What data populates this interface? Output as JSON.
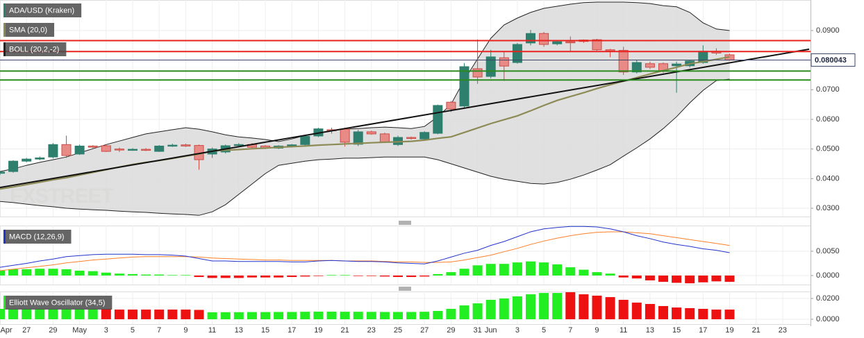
{
  "chart_data": [
    {
      "type": "candlestick",
      "watermark": "FXSTREET",
      "xlim": [
        0,
        61.1
      ],
      "xticks": [
        {
          "value": 0,
          "label": "Apr"
        },
        {
          "value": 2,
          "label": "27"
        },
        {
          "value": 4,
          "label": "29"
        },
        {
          "value": 6,
          "label": "May"
        },
        {
          "value": 8,
          "label": "3"
        },
        {
          "value": 10,
          "label": "5"
        },
        {
          "value": 12,
          "label": "7"
        },
        {
          "value": 14,
          "label": "9"
        },
        {
          "value": 16,
          "label": "11"
        },
        {
          "value": 18,
          "label": "13"
        },
        {
          "value": 20,
          "label": "15"
        },
        {
          "value": 22,
          "label": "17"
        },
        {
          "value": 24,
          "label": "19"
        },
        {
          "value": 26,
          "label": "21"
        },
        {
          "value": 28,
          "label": "23"
        },
        {
          "value": 30,
          "label": "25"
        },
        {
          "value": 32,
          "label": "27"
        },
        {
          "value": 34,
          "label": "29"
        },
        {
          "value": 36,
          "label": "31"
        },
        {
          "value": 37,
          "label": "Jun"
        },
        {
          "value": 39,
          "label": "3"
        },
        {
          "value": 41,
          "label": "5"
        },
        {
          "value": 43,
          "label": "7"
        },
        {
          "value": 45,
          "label": "9"
        },
        {
          "value": 47,
          "label": "11"
        },
        {
          "value": 49,
          "label": "13"
        },
        {
          "value": 51,
          "label": "15"
        },
        {
          "value": 53,
          "label": "17"
        },
        {
          "value": 55,
          "label": "19"
        },
        {
          "value": 57,
          "label": "21"
        },
        {
          "value": 59,
          "label": "23"
        }
      ],
      "ylim": [
        0.0272,
        0.1003
      ],
      "yticks": [
        {
          "value": 0.03,
          "label": "0.0300"
        },
        {
          "value": 0.04,
          "label": "0.0400"
        },
        {
          "value": 0.05,
          "label": "0.0500"
        },
        {
          "value": 0.06,
          "label": "0.0600"
        },
        {
          "value": 0.07,
          "label": "0.0700"
        },
        {
          "value": 0.08,
          "label": "0.0800"
        },
        {
          "value": 0.09,
          "label": "0.0900"
        }
      ],
      "grid": true,
      "last_price": 0.080043,
      "ohlc": {
        "name": "ADA/USD (Kraken)",
        "up_color": "#2e7f6e",
        "down_color": "#e88b86",
        "down_edge": "#cc4b45",
        "open": [
          0.0418,
          0.0424,
          0.0459,
          0.0466,
          0.0473,
          0.0515,
          0.0483,
          0.051,
          0.0511,
          0.05,
          0.0497,
          0.0499,
          0.0492,
          0.051,
          0.0514,
          0.0512,
          0.0483,
          0.049,
          0.0512,
          0.0515,
          0.051,
          0.0503,
          0.0508,
          0.0515,
          0.0544,
          0.0565,
          0.0567,
          0.0516,
          0.0558,
          0.0551,
          0.0515,
          0.0539,
          0.0534,
          0.0553,
          0.0658,
          0.0645,
          0.0771,
          0.0745,
          0.0808,
          0.0792,
          0.0858,
          0.089,
          0.0855,
          0.0862,
          0.0868,
          0.0869,
          0.0835,
          0.0833,
          0.076,
          0.0788,
          0.0788,
          0.0781,
          0.0781,
          0.0792,
          0.083,
          0.0818
        ],
        "high": [
          0.0425,
          0.0462,
          0.047,
          0.0475,
          0.052,
          0.0545,
          0.0515,
          0.0513,
          0.0515,
          0.0505,
          0.0503,
          0.0503,
          0.0513,
          0.0518,
          0.0518,
          0.0515,
          0.0505,
          0.0515,
          0.052,
          0.052,
          0.0513,
          0.0513,
          0.0517,
          0.0548,
          0.0572,
          0.0572,
          0.0572,
          0.0565,
          0.0562,
          0.0555,
          0.0545,
          0.0542,
          0.056,
          0.065,
          0.0662,
          0.079,
          0.087,
          0.0835,
          0.083,
          0.0858,
          0.0902,
          0.0895,
          0.0868,
          0.088,
          0.087,
          0.0872,
          0.0838,
          0.0845,
          0.08,
          0.0795,
          0.0792,
          0.0795,
          0.08,
          0.085,
          0.084,
          0.0822
        ],
        "low": [
          0.0412,
          0.042,
          0.0455,
          0.0462,
          0.0468,
          0.047,
          0.048,
          0.0503,
          0.049,
          0.049,
          0.0494,
          0.0493,
          0.049,
          0.0507,
          0.0507,
          0.043,
          0.047,
          0.0485,
          0.0508,
          0.0503,
          0.05,
          0.05,
          0.0505,
          0.0512,
          0.054,
          0.0552,
          0.0508,
          0.051,
          0.0548,
          0.052,
          0.051,
          0.0532,
          0.053,
          0.055,
          0.0625,
          0.064,
          0.072,
          0.0738,
          0.073,
          0.0788,
          0.085,
          0.0845,
          0.085,
          0.0828,
          0.0858,
          0.0832,
          0.081,
          0.075,
          0.0755,
          0.077,
          0.0757,
          0.069,
          0.0775,
          0.0788,
          0.0818,
          0.0798
        ],
        "close": [
          0.0422,
          0.0459,
          0.0466,
          0.047,
          0.0515,
          0.0478,
          0.051,
          0.0506,
          0.0492,
          0.0497,
          0.0499,
          0.0497,
          0.051,
          0.0513,
          0.051,
          0.0464,
          0.05,
          0.0511,
          0.0515,
          0.0506,
          0.0503,
          0.051,
          0.0514,
          0.0543,
          0.0568,
          0.0563,
          0.0523,
          0.0558,
          0.0551,
          0.0523,
          0.0539,
          0.0536,
          0.0556,
          0.0647,
          0.0635,
          0.0778,
          0.0743,
          0.0811,
          0.078,
          0.0853,
          0.089,
          0.0853,
          0.0862,
          0.086,
          0.0863,
          0.0835,
          0.0831,
          0.076,
          0.0792,
          0.0776,
          0.0764,
          0.0787,
          0.0797,
          0.083,
          0.0824,
          0.08
        ]
      },
      "sma": {
        "name": "SMA (20,0)",
        "color": "#8c8a55",
        "values": [
          0.0365,
          0.0372,
          0.038,
          0.0388,
          0.0396,
          0.0403,
          0.0412,
          0.0421,
          0.043,
          0.0439,
          0.0448,
          0.0455,
          0.0461,
          0.0468,
          0.0476,
          0.0483,
          0.0493,
          0.0496,
          0.0498,
          0.0501,
          0.0503,
          0.0506,
          0.0508,
          0.051,
          0.0513,
          0.0515,
          0.0517,
          0.0519,
          0.0521,
          0.0523,
          0.0524,
          0.0526,
          0.053,
          0.0536,
          0.0541,
          0.0556,
          0.0571,
          0.0586,
          0.0599,
          0.0612,
          0.0629,
          0.0647,
          0.0664,
          0.0677,
          0.069,
          0.0704,
          0.0717,
          0.0729,
          0.0741,
          0.0753,
          0.0765,
          0.0776,
          0.0788,
          0.0795,
          0.0803,
          0.0811
        ]
      },
      "boll": {
        "name": "BOLL (20,2,-2)",
        "color": "#222222",
        "fill": "#dadada",
        "upper": [
          0.0424,
          0.0433,
          0.0445,
          0.0455,
          0.0464,
          0.0473,
          0.0487,
          0.0501,
          0.0515,
          0.0527,
          0.0539,
          0.0551,
          0.0558,
          0.0565,
          0.0572,
          0.0567,
          0.0558,
          0.0548,
          0.0541,
          0.0537,
          0.0532,
          0.0525,
          0.0534,
          0.0546,
          0.0555,
          0.0562,
          0.0567,
          0.0569,
          0.0572,
          0.0574,
          0.0572,
          0.0569,
          0.0576,
          0.0609,
          0.0651,
          0.0733,
          0.0804,
          0.0874,
          0.0919,
          0.0942,
          0.0961,
          0.0975,
          0.0982,
          0.0989,
          0.0994,
          0.0996,
          0.0996,
          0.0996,
          0.0994,
          0.0991,
          0.0984,
          0.098,
          0.0961,
          0.0926,
          0.0905,
          0.09
        ],
        "lower": [
          0.0323,
          0.0319,
          0.0314,
          0.0309,
          0.0305,
          0.03,
          0.0297,
          0.0295,
          0.0293,
          0.029,
          0.0288,
          0.0286,
          0.0283,
          0.0281,
          0.0279,
          0.0276,
          0.0288,
          0.0312,
          0.0347,
          0.0382,
          0.0417,
          0.0445,
          0.0452,
          0.0459,
          0.0464,
          0.0466,
          0.0469,
          0.0469,
          0.0471,
          0.0473,
          0.0473,
          0.0473,
          0.0473,
          0.0464,
          0.045,
          0.0436,
          0.0422,
          0.0408,
          0.0398,
          0.0391,
          0.0384,
          0.0382,
          0.0387,
          0.0398,
          0.0412,
          0.0429,
          0.0447,
          0.0476,
          0.0504,
          0.0534,
          0.0569,
          0.0609,
          0.0656,
          0.0698,
          0.0731,
          0.0736
        ]
      },
      "trendline": {
        "color": "#111111",
        "x": [
          0,
          61
        ],
        "values": [
          0.037,
          0.0837
        ]
      },
      "levels": [
        {
          "value": 0.0866,
          "color": "#e8231f"
        },
        {
          "value": 0.0829,
          "color": "#e8231f"
        },
        {
          "value": 0.0763,
          "color": "#2b8a1e"
        },
        {
          "value": 0.0733,
          "color": "#2b8a1e"
        }
      ]
    },
    {
      "type": "macd",
      "name": "MACD (12,26,9)",
      "ylim": [
        -0.00186,
        0.01029
      ],
      "yticks": [
        {
          "value": 0,
          "label": "0.0000"
        },
        {
          "value": 0.005,
          "label": "0.0050"
        }
      ],
      "macd": {
        "color": "#2233cc",
        "values": [
          0.0017,
          0.0021,
          0.0025,
          0.003,
          0.0034,
          0.0039,
          0.0041,
          0.0043,
          0.0044,
          0.0044,
          0.0044,
          0.0043,
          0.0043,
          0.0042,
          0.004,
          0.0035,
          0.003,
          0.003,
          0.0029,
          0.0029,
          0.0029,
          0.0029,
          0.0028,
          0.0028,
          0.003,
          0.0031,
          0.003,
          0.0029,
          0.0029,
          0.0028,
          0.0026,
          0.0025,
          0.0024,
          0.003,
          0.0038,
          0.0046,
          0.0052,
          0.0062,
          0.007,
          0.008,
          0.009,
          0.0096,
          0.0099,
          0.0101,
          0.0101,
          0.01,
          0.0096,
          0.009,
          0.0082,
          0.0076,
          0.0069,
          0.0064,
          0.006,
          0.0055,
          0.0052,
          0.0047
        ]
      },
      "signal": {
        "color": "#ff7f27",
        "values": [
          0.001,
          0.0013,
          0.0016,
          0.0019,
          0.0022,
          0.0026,
          0.0029,
          0.0032,
          0.0034,
          0.0036,
          0.0038,
          0.0039,
          0.0039,
          0.0039,
          0.0039,
          0.0038,
          0.0036,
          0.0035,
          0.0034,
          0.0033,
          0.0032,
          0.0032,
          0.0031,
          0.0031,
          0.0031,
          0.0031,
          0.003,
          0.003,
          0.003,
          0.0029,
          0.0028,
          0.0028,
          0.0027,
          0.0027,
          0.0028,
          0.0032,
          0.0037,
          0.0042,
          0.0049,
          0.0056,
          0.0064,
          0.0071,
          0.0077,
          0.0082,
          0.0086,
          0.0089,
          0.009,
          0.009,
          0.0088,
          0.0086,
          0.0082,
          0.0078,
          0.0074,
          0.007,
          0.0066,
          0.0062
        ]
      },
      "histogram": {
        "positive_color": "#22ee22",
        "negative_color": "#ee1111",
        "values": [
          0.001,
          0.0013,
          0.0013,
          0.0014,
          0.0014,
          0.0013,
          0.001,
          0.0009,
          0.0006,
          0.0004,
          0.0003,
          0.0002,
          0.0002,
          0.0001,
          0.0001,
          -0.0003,
          -0.0005,
          -0.0005,
          -0.0005,
          -0.0004,
          -0.0004,
          -0.0004,
          -0.0003,
          -0.0002,
          -0.0001,
          0.0001,
          0.0001,
          -0.0001,
          -0.0001,
          -0.0002,
          -0.0003,
          -0.0003,
          -0.0002,
          0.0003,
          0.0007,
          0.0014,
          0.0021,
          0.0024,
          0.0024,
          0.0027,
          0.0029,
          0.0027,
          0.0023,
          0.0017,
          0.0012,
          0.0007,
          0.0004,
          -0.0004,
          -0.0006,
          -0.001,
          -0.0013,
          -0.0015,
          -0.0016,
          -0.0014,
          -0.0012,
          -0.0013
        ]
      }
    },
    {
      "type": "oscillator",
      "name": "Elliott Wave Oscillator (34,5)",
      "ylim": [
        -0.0047,
        0.0267
      ],
      "yticks": [
        {
          "value": 0,
          "label": "0.0000"
        },
        {
          "value": 0.02,
          "label": "0.0200"
        }
      ],
      "values": [
        0.01,
        0.01,
        0.01,
        0.01,
        0.01,
        0.01,
        0.01,
        0.01,
        0.01,
        0.0093,
        0.0093,
        0.0093,
        0.0093,
        0.0093,
        0.0093,
        0.009,
        0.0067,
        0.0068,
        0.0068,
        0.0069,
        0.0069,
        0.007,
        0.007,
        0.0072,
        0.0073,
        0.0073,
        0.0072,
        0.0072,
        0.0071,
        0.007,
        0.007,
        0.007,
        0.0072,
        0.008,
        0.01,
        0.0133,
        0.0153,
        0.0187,
        0.02,
        0.022,
        0.024,
        0.0253,
        0.0253,
        0.026,
        0.024,
        0.0227,
        0.0213,
        0.0187,
        0.016,
        0.0147,
        0.0127,
        0.0113,
        0.0107,
        0.01,
        0.0093,
        0.0093
      ],
      "colors": [
        "#22ee22",
        "#22ee22",
        "#22ee22",
        "#22ee22",
        "#22ee22",
        "#22ee22",
        "#22ee22",
        "#22ee22",
        "#ee1111",
        "#ee1111",
        "#ee1111",
        "#ee1111",
        "#ee1111",
        "#ee1111",
        "#ee1111",
        "#ee1111",
        "#22ee22",
        "#22ee22",
        "#22ee22",
        "#22ee22",
        "#22ee22",
        "#22ee22",
        "#22ee22",
        "#22ee22",
        "#22ee22",
        "#22ee22",
        "#22ee22",
        "#22ee22",
        "#22ee22",
        "#22ee22",
        "#22ee22",
        "#22ee22",
        "#22ee22",
        "#22ee22",
        "#22ee22",
        "#22ee22",
        "#22ee22",
        "#22ee22",
        "#22ee22",
        "#22ee22",
        "#22ee22",
        "#22ee22",
        "#22ee22",
        "#ee1111",
        "#ee1111",
        "#ee1111",
        "#ee1111",
        "#ee1111",
        "#ee1111",
        "#ee1111",
        "#ee1111",
        "#ee1111",
        "#ee1111",
        "#ee1111",
        "#ee1111",
        "#ee1111"
      ]
    }
  ]
}
